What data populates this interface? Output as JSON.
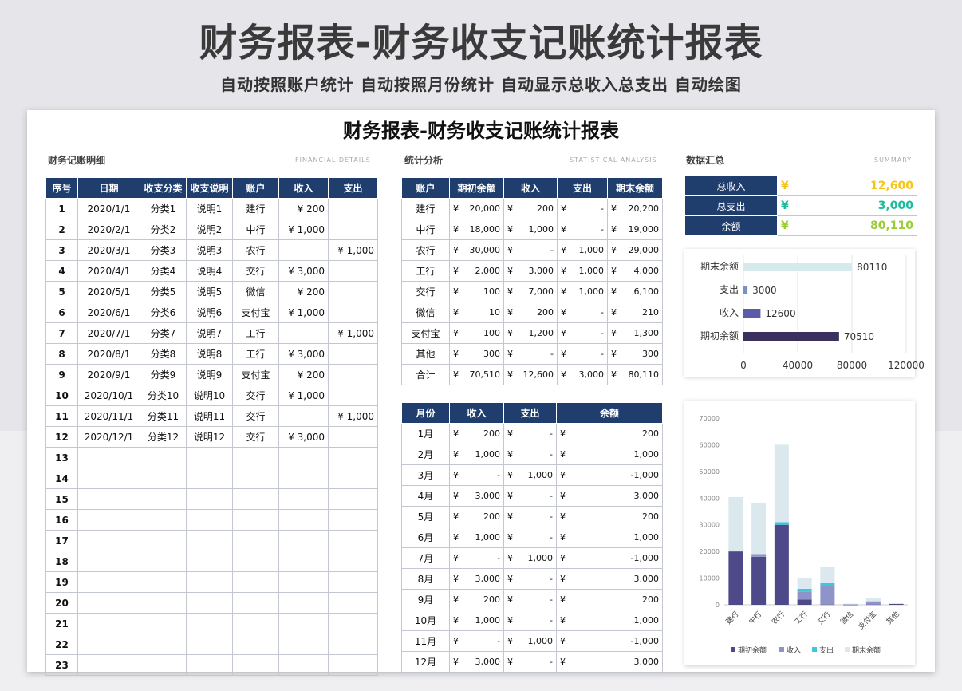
{
  "header": {
    "title": "财务报表-财务收支记账统计报表",
    "subtitle": "自动按照账户统计 自动按照月份统计 自动显示总收入总支出  自动绘图"
  },
  "sheet": {
    "title": "财务报表-财务收支记账统计报表"
  },
  "sections": {
    "details": {
      "title": "财务记账明细",
      "en": "FINANCIAL DETAILS"
    },
    "stats": {
      "title": "统计分析",
      "en": "STATISTICAL ANALYSIS"
    },
    "summary": {
      "title": "数据汇总",
      "en": "SUMMARY"
    }
  },
  "details": {
    "columns": [
      "序号",
      "日期",
      "收支分类",
      "收支说明",
      "账户",
      "收入",
      "支出"
    ],
    "rows": [
      [
        "1",
        "2020/1/1",
        "分类1",
        "说明1",
        "建行",
        "¥   200",
        ""
      ],
      [
        "2",
        "2020/2/1",
        "分类2",
        "说明2",
        "中行",
        "¥ 1,000",
        ""
      ],
      [
        "3",
        "2020/3/1",
        "分类3",
        "说明3",
        "农行",
        "",
        "¥ 1,000"
      ],
      [
        "4",
        "2020/4/1",
        "分类4",
        "说明4",
        "交行",
        "¥ 3,000",
        ""
      ],
      [
        "5",
        "2020/5/1",
        "分类5",
        "说明5",
        "微信",
        "¥   200",
        ""
      ],
      [
        "6",
        "2020/6/1",
        "分类6",
        "说明6",
        "支付宝",
        "¥ 1,000",
        ""
      ],
      [
        "7",
        "2020/7/1",
        "分类7",
        "说明7",
        "工行",
        "",
        "¥ 1,000"
      ],
      [
        "8",
        "2020/8/1",
        "分类8",
        "说明8",
        "工行",
        "¥ 3,000",
        ""
      ],
      [
        "9",
        "2020/9/1",
        "分类9",
        "说明9",
        "支付宝",
        "¥   200",
        ""
      ],
      [
        "10",
        "2020/10/1",
        "分类10",
        "说明10",
        "交行",
        "¥ 1,000",
        ""
      ],
      [
        "11",
        "2020/11/1",
        "分类11",
        "说明11",
        "交行",
        "",
        "¥ 1,000"
      ],
      [
        "12",
        "2020/12/1",
        "分类12",
        "说明12",
        "交行",
        "¥ 3,000",
        ""
      ],
      [
        "13",
        "",
        "",
        "",
        "",
        "",
        ""
      ],
      [
        "14",
        "",
        "",
        "",
        "",
        "",
        ""
      ],
      [
        "15",
        "",
        "",
        "",
        "",
        "",
        ""
      ],
      [
        "16",
        "",
        "",
        "",
        "",
        "",
        ""
      ],
      [
        "17",
        "",
        "",
        "",
        "",
        "",
        ""
      ],
      [
        "18",
        "",
        "",
        "",
        "",
        "",
        ""
      ],
      [
        "19",
        "",
        "",
        "",
        "",
        "",
        ""
      ],
      [
        "20",
        "",
        "",
        "",
        "",
        "",
        ""
      ],
      [
        "21",
        "",
        "",
        "",
        "",
        "",
        ""
      ],
      [
        "22",
        "",
        "",
        "",
        "",
        "",
        ""
      ],
      [
        "23",
        "",
        "",
        "",
        "",
        "",
        ""
      ]
    ]
  },
  "accounts": {
    "columns": [
      "账户",
      "期初余额",
      "收入",
      "支出",
      "期末余额"
    ],
    "rows": [
      [
        "建行",
        "20,000",
        "200",
        "-",
        "20,200"
      ],
      [
        "中行",
        "18,000",
        "1,000",
        "-",
        "19,000"
      ],
      [
        "农行",
        "30,000",
        "-",
        "1,000",
        "29,000"
      ],
      [
        "工行",
        "2,000",
        "3,000",
        "1,000",
        "4,000"
      ],
      [
        "交行",
        "100",
        "7,000",
        "1,000",
        "6,100"
      ],
      [
        "微信",
        "10",
        "200",
        "-",
        "210"
      ],
      [
        "支付宝",
        "100",
        "1,200",
        "-",
        "1,300"
      ],
      [
        "其他",
        "300",
        "-",
        "-",
        "300"
      ],
      [
        "合计",
        "70,510",
        "12,600",
        "3,000",
        "80,110"
      ]
    ],
    "currency": "¥"
  },
  "monthly": {
    "columns": [
      "月份",
      "收入",
      "支出",
      "余额"
    ],
    "rows": [
      [
        "1月",
        "200",
        "-",
        "200"
      ],
      [
        "2月",
        "1,000",
        "-",
        "1,000"
      ],
      [
        "3月",
        "-",
        "1,000",
        "-1,000"
      ],
      [
        "4月",
        "3,000",
        "-",
        "3,000"
      ],
      [
        "5月",
        "200",
        "-",
        "200"
      ],
      [
        "6月",
        "1,000",
        "-",
        "1,000"
      ],
      [
        "7月",
        "-",
        "1,000",
        "-1,000"
      ],
      [
        "8月",
        "3,000",
        "-",
        "3,000"
      ],
      [
        "9月",
        "200",
        "-",
        "200"
      ],
      [
        "10月",
        "1,000",
        "-",
        "1,000"
      ],
      [
        "11月",
        "-",
        "1,000",
        "-1,000"
      ],
      [
        "12月",
        "3,000",
        "-",
        "3,000"
      ]
    ],
    "currency": "¥"
  },
  "summary": {
    "rows": [
      {
        "label": "总收入",
        "value": "12,600",
        "color": "#f5c518"
      },
      {
        "label": "总支出",
        "value": "3,000",
        "color": "#1abc9c"
      },
      {
        "label": "余额",
        "value": "80,110",
        "color": "#9acd32"
      }
    ],
    "currency": "¥"
  },
  "chart_data": [
    {
      "type": "bar",
      "orientation": "horizontal",
      "categories": [
        "期末余额",
        "支出",
        "收入",
        "期初余额"
      ],
      "values": [
        80110,
        3000,
        12600,
        70510
      ],
      "colors": [
        "#d6eaee",
        "#7b8fc7",
        "#5b5ba8",
        "#3b2f5e"
      ],
      "xlim": [
        0,
        120000
      ],
      "xticks": [
        "0",
        "40000",
        "80000",
        "120000"
      ],
      "data_labels": [
        "80110",
        "3000",
        "12600",
        "70510"
      ]
    },
    {
      "type": "bar",
      "stacked": true,
      "categories": [
        "建行",
        "中行",
        "农行",
        "工行",
        "交行",
        "微信",
        "支付宝",
        "其他"
      ],
      "series": [
        {
          "name": "期初余额",
          "color": "#4e4a8a",
          "values": [
            20000,
            18000,
            30000,
            2000,
            100,
            10,
            100,
            300
          ]
        },
        {
          "name": "收入",
          "color": "#8f94c8",
          "values": [
            200,
            1000,
            0,
            3000,
            7000,
            200,
            1200,
            0
          ]
        },
        {
          "name": "支出",
          "color": "#3ec6dc",
          "values": [
            0,
            0,
            1000,
            1000,
            1000,
            0,
            0,
            0
          ]
        },
        {
          "name": "期末余额",
          "color": "#dbe8ee",
          "values": [
            20200,
            19000,
            29000,
            4000,
            6100,
            210,
            1300,
            300
          ]
        }
      ],
      "ylim": [
        0,
        70000
      ],
      "yticks": [
        "0",
        "10000",
        "20000",
        "30000",
        "40000",
        "50000",
        "60000",
        "70000"
      ],
      "legend": "bottom"
    }
  ]
}
